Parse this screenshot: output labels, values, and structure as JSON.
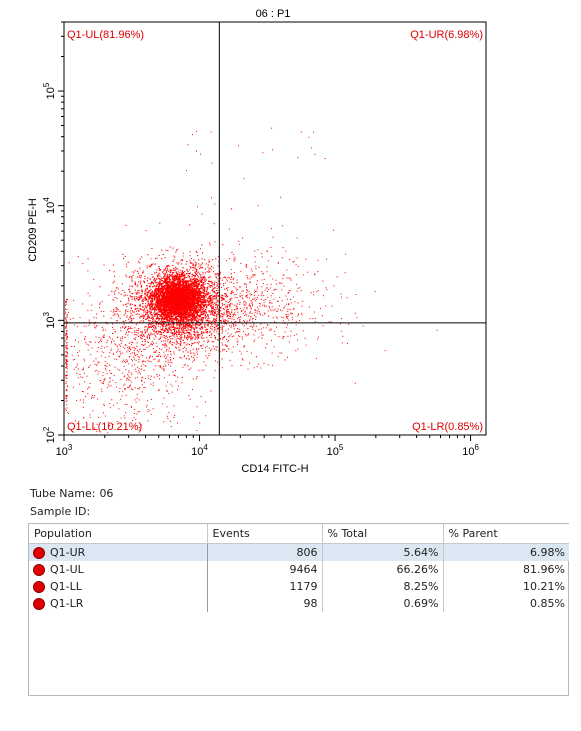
{
  "chart_data": {
    "type": "scatter",
    "title": "06 : P1",
    "xlabel": "CD14 FITC-H",
    "ylabel": "CD209 PE-H",
    "x_scale": "log",
    "y_scale": "log",
    "xlim": [
      1000,
      1300000
    ],
    "ylim": [
      100,
      400000
    ],
    "x_tick_labels": [
      "10^3",
      "10^4",
      "10^5",
      "10^6"
    ],
    "y_tick_labels": [
      "10^2",
      "10^3",
      "10^4",
      "10^5"
    ],
    "quadrant_gate": {
      "x": 14000,
      "y": 950
    },
    "point_color": "#ff0000",
    "label_color": "#e00000",
    "quadrant_labels": {
      "ul": "Q1-UL(81.96%)",
      "ur": "Q1-UR(6.98%)",
      "ll": "Q1-LL(10.21%)",
      "lr": "Q1-LR(0.85%)"
    },
    "series": [
      {
        "name": "Q1-UL",
        "events": 9464
      },
      {
        "name": "Q1-UR",
        "events": 806
      },
      {
        "name": "Q1-LL",
        "events": 1179
      },
      {
        "name": "Q1-LR",
        "events": 98
      }
    ]
  },
  "info": {
    "tube_label": "Tube Name:",
    "tube_value": "06",
    "sample_label": "Sample ID:",
    "sample_value": ""
  },
  "table": {
    "headers": [
      "Population",
      "Events",
      "% Total",
      "% Parent"
    ],
    "rows": [
      {
        "population": "Q1-UR",
        "events": "806",
        "total": "5.64%",
        "parent": "6.98%",
        "selected": true
      },
      {
        "population": "Q1-UL",
        "events": "9464",
        "total": "66.26%",
        "parent": "81.96%",
        "selected": false
      },
      {
        "population": "Q1-LL",
        "events": "1179",
        "total": "8.25%",
        "parent": "10.21%",
        "selected": false
      },
      {
        "population": "Q1-LR",
        "events": "98",
        "total": "0.69%",
        "parent": "0.85%",
        "selected": false
      }
    ]
  }
}
